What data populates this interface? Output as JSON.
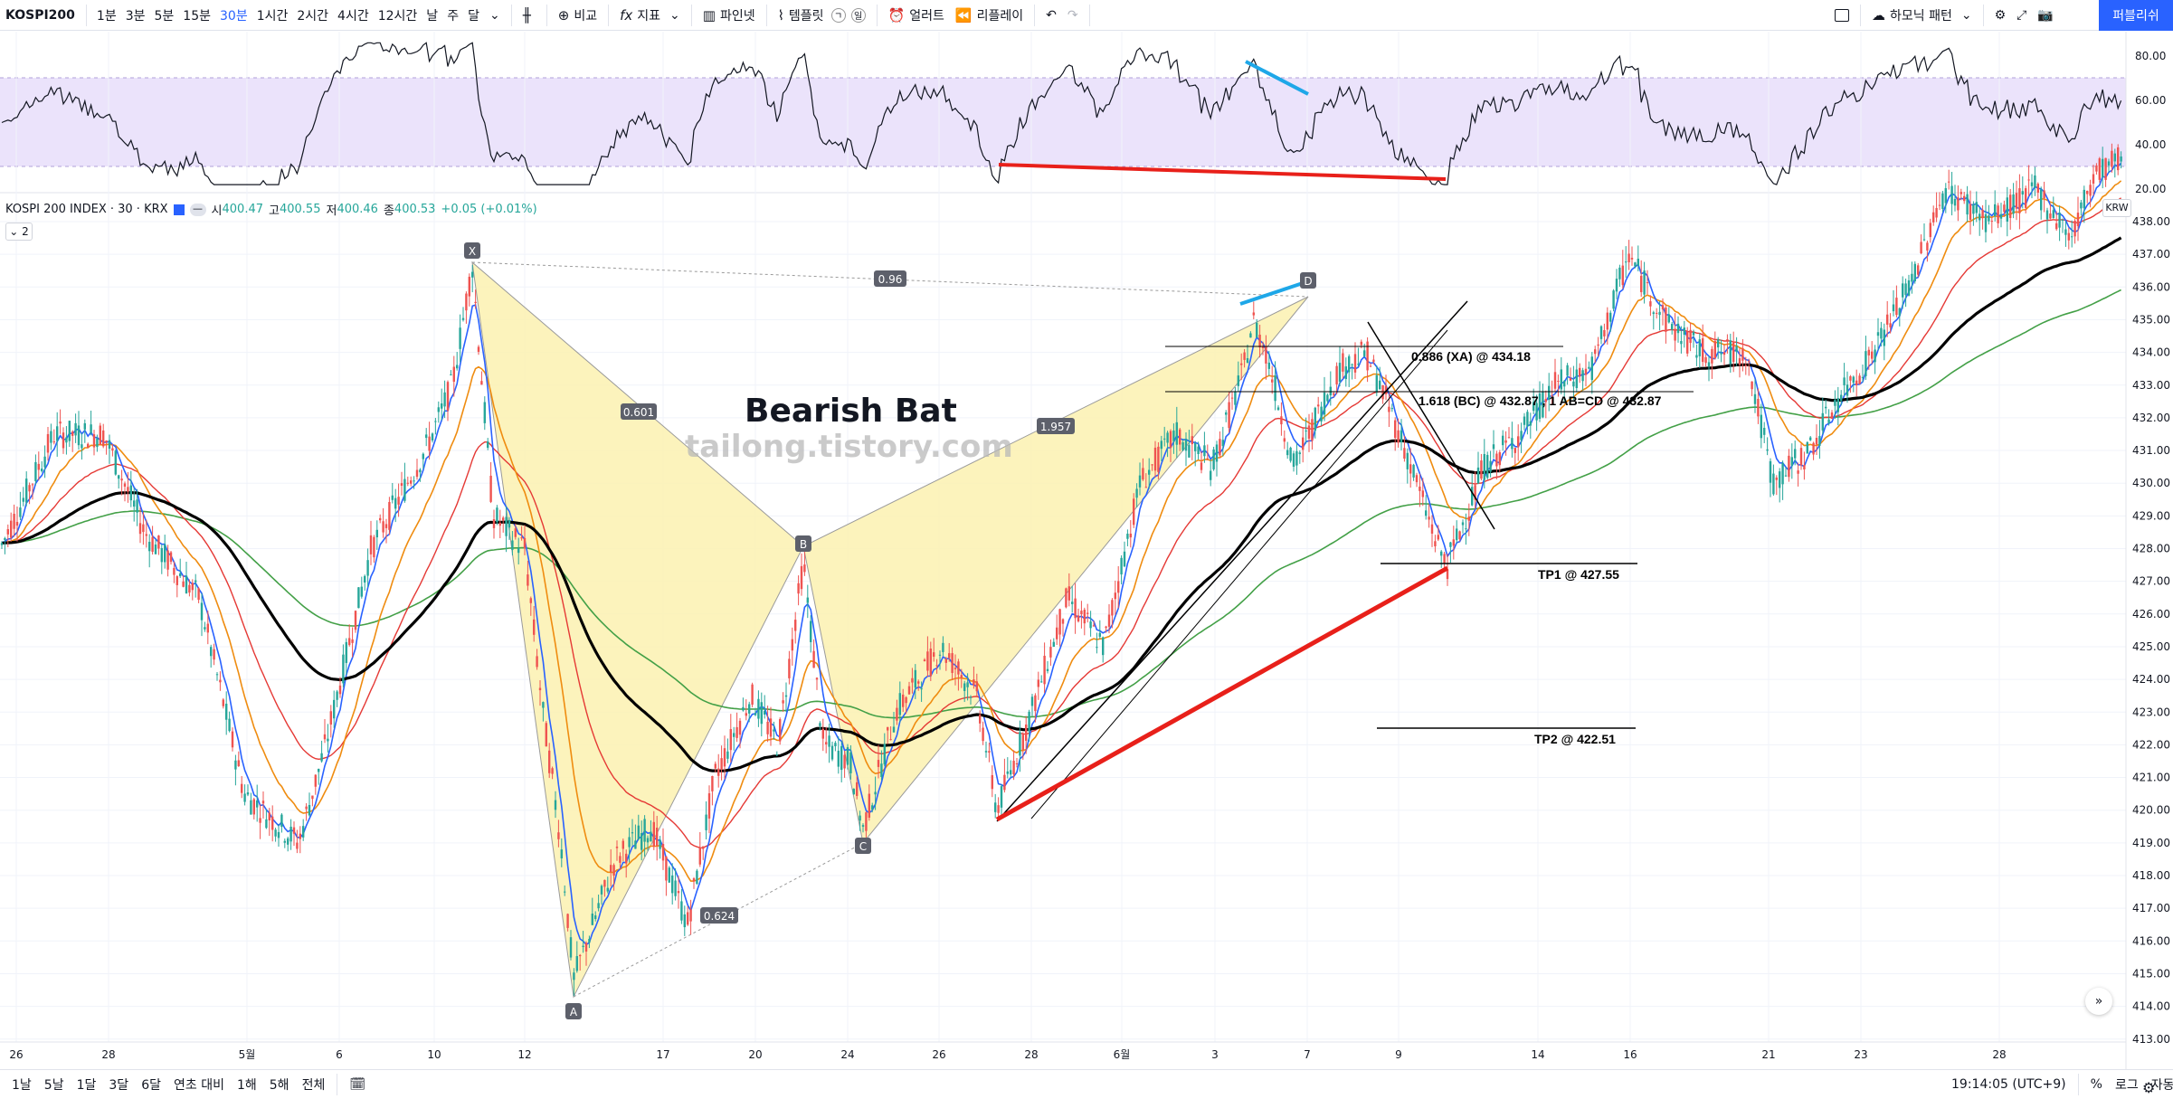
{
  "toolbar": {
    "symbol": "KOSPI200",
    "timeframes": [
      "1분",
      "3분",
      "5분",
      "15분",
      "30분",
      "1시간",
      "2시간",
      "4시간",
      "12시간",
      "날",
      "주",
      "달"
    ],
    "active_timeframe": "30분",
    "compare": "비교",
    "indicators": "지표",
    "pine": "파인넷",
    "templates": "템플릿",
    "alert": "얼러트",
    "replay": "리플레이",
    "harmonic": "하모닉 패턴",
    "publish": "퍼블리쉬"
  },
  "legend": {
    "title": "KOSPI 200 INDEX · 30 · KRX",
    "o_label": "시",
    "o_value": "400.47",
    "h_label": "고",
    "h_value": "400.55",
    "l_label": "저",
    "l_value": "400.46",
    "c_label": "종",
    "c_value": "400.53",
    "change": "+0.05 (+0.01%)",
    "collapse_count": "2",
    "currency": "KRW"
  },
  "chart_data": {
    "type": "candlestick",
    "rsi_axis": [
      "80.00",
      "60.00",
      "40.00",
      "20.00"
    ],
    "price_axis": [
      "438.00",
      "437.00",
      "436.00",
      "435.00",
      "434.00",
      "433.00",
      "432.00",
      "431.00",
      "430.00",
      "429.00",
      "428.00",
      "427.00",
      "426.00",
      "425.00",
      "424.00",
      "423.00",
      "422.00",
      "421.00",
      "420.00",
      "419.00",
      "418.00",
      "417.00",
      "416.00",
      "415.00",
      "414.00",
      "413.00"
    ],
    "time_axis": [
      "26",
      "28",
      "5월",
      "6",
      "10",
      "12",
      "17",
      "20",
      "24",
      "26",
      "28",
      "6월",
      "3",
      "7",
      "9",
      "14",
      "16",
      "21",
      "23",
      "28"
    ],
    "pattern_title": "Bearish Bat",
    "watermark": "tailong.tistory.com",
    "pattern_points": {
      "X": "X",
      "A": "A",
      "B": "B",
      "C": "C",
      "D": "D"
    },
    "ratios": [
      "0.96",
      "0.601",
      "1.957",
      "0.624"
    ],
    "levels": [
      {
        "label": "0.886 (XA) @ 434.18",
        "value": 434.18
      },
      {
        "label": "1.618 (BC) @ 432.87 , 1 AB=CD @ 432.87",
        "value": 432.87
      },
      {
        "label": "TP1 @ 427.55",
        "value": 427.55
      },
      {
        "label": "TP2 @ 422.51",
        "value": 422.51
      }
    ]
  },
  "bottom": {
    "ranges": [
      "1날",
      "5날",
      "1달",
      "3달",
      "6달",
      "연초 대비",
      "1해",
      "5해",
      "전체"
    ],
    "time": "19:14:05 (UTC+9)",
    "percent": "%",
    "log": "로그",
    "auto": "자동"
  }
}
